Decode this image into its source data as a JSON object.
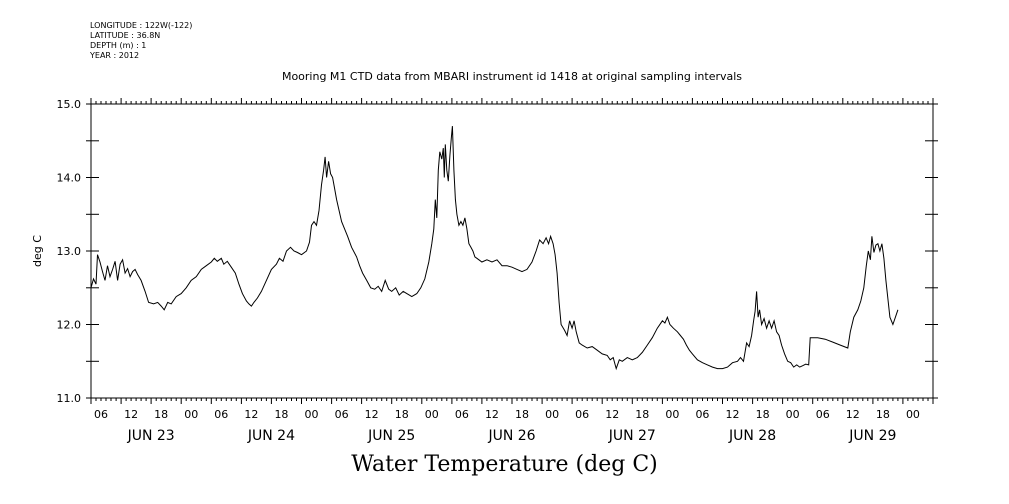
{
  "header": {
    "longitude": "LONGITUDE : 122W(-122)",
    "latitude": "LATITUDE : 36.8N",
    "depth": "DEPTH (m) : 1",
    "year": "YEAR : 2012"
  },
  "chart_data": {
    "type": "line",
    "title": "Mooring M1 CTD data from MBARI instrument id 1418 at original sampling intervals",
    "ylabel": "deg C",
    "xlabel": "Water Temperature (deg C)",
    "ylim": [
      11.0,
      15.0
    ],
    "yticks": [
      "11.0",
      "12.0",
      "13.0",
      "14.0",
      "15.0"
    ],
    "xlim_hours": [
      0,
      168
    ],
    "hour_tick_labels": [
      "06",
      "12",
      "18",
      "00",
      "06",
      "12",
      "18",
      "00",
      "06",
      "12",
      "18",
      "00",
      "06",
      "12",
      "18",
      "00",
      "06",
      "12",
      "18",
      "00",
      "06",
      "12",
      "18",
      "00",
      "06",
      "12",
      "18",
      "00"
    ],
    "day_labels": [
      "JUN 23",
      "JUN 24",
      "JUN 25",
      "JUN 26",
      "JUN 27",
      "JUN 28",
      "JUN 29"
    ],
    "series": [
      {
        "points": [
          [
            0.0,
            12.5
          ],
          [
            0.5,
            12.62
          ],
          [
            1.0,
            12.55
          ],
          [
            1.3,
            12.95
          ],
          [
            1.8,
            12.85
          ],
          [
            2.3,
            12.72
          ],
          [
            2.8,
            12.6
          ],
          [
            3.3,
            12.8
          ],
          [
            3.8,
            12.65
          ],
          [
            4.3,
            12.75
          ],
          [
            4.8,
            12.86
          ],
          [
            5.3,
            12.6
          ],
          [
            5.8,
            12.82
          ],
          [
            6.3,
            12.88
          ],
          [
            6.8,
            12.7
          ],
          [
            7.3,
            12.76
          ],
          [
            7.8,
            12.65
          ],
          [
            8.3,
            12.72
          ],
          [
            8.8,
            12.75
          ],
          [
            9.3,
            12.68
          ],
          [
            10.0,
            12.6
          ],
          [
            10.8,
            12.45
          ],
          [
            11.5,
            12.3
          ],
          [
            12.5,
            12.28
          ],
          [
            13.3,
            12.3
          ],
          [
            14.0,
            12.25
          ],
          [
            14.6,
            12.2
          ],
          [
            15.3,
            12.3
          ],
          [
            16.0,
            12.28
          ],
          [
            17.0,
            12.38
          ],
          [
            18.0,
            12.42
          ],
          [
            19.0,
            12.5
          ],
          [
            20.0,
            12.6
          ],
          [
            21.0,
            12.65
          ],
          [
            22.0,
            12.75
          ],
          [
            23.0,
            12.8
          ],
          [
            24.0,
            12.85
          ],
          [
            24.6,
            12.9
          ],
          [
            25.2,
            12.86
          ],
          [
            26.0,
            12.9
          ],
          [
            26.5,
            12.82
          ],
          [
            27.2,
            12.86
          ],
          [
            28.0,
            12.78
          ],
          [
            28.8,
            12.7
          ],
          [
            29.5,
            12.55
          ],
          [
            30.2,
            12.42
          ],
          [
            31.0,
            12.32
          ],
          [
            31.5,
            12.28
          ],
          [
            32.0,
            12.25
          ],
          [
            32.5,
            12.3
          ],
          [
            33.2,
            12.36
          ],
          [
            34.0,
            12.45
          ],
          [
            35.0,
            12.6
          ],
          [
            36.0,
            12.75
          ],
          [
            37.0,
            12.82
          ],
          [
            37.6,
            12.9
          ],
          [
            38.3,
            12.86
          ],
          [
            39.0,
            13.0
          ],
          [
            39.8,
            13.05
          ],
          [
            40.5,
            13.0
          ],
          [
            41.2,
            12.98
          ],
          [
            42.0,
            12.95
          ],
          [
            43.0,
            13.0
          ],
          [
            43.6,
            13.12
          ],
          [
            44.0,
            13.35
          ],
          [
            44.5,
            13.4
          ],
          [
            45.0,
            13.35
          ],
          [
            45.5,
            13.55
          ],
          [
            46.0,
            13.9
          ],
          [
            46.4,
            14.1
          ],
          [
            46.7,
            14.28
          ],
          [
            47.0,
            14.0
          ],
          [
            47.4,
            14.22
          ],
          [
            47.8,
            14.05
          ],
          [
            48.2,
            14.0
          ],
          [
            48.6,
            13.85
          ],
          [
            49.0,
            13.7
          ],
          [
            49.5,
            13.55
          ],
          [
            50.0,
            13.4
          ],
          [
            50.6,
            13.3
          ],
          [
            51.2,
            13.2
          ],
          [
            52.0,
            13.05
          ],
          [
            53.0,
            12.92
          ],
          [
            53.6,
            12.8
          ],
          [
            54.2,
            12.7
          ],
          [
            55.0,
            12.6
          ],
          [
            55.8,
            12.5
          ],
          [
            56.6,
            12.48
          ],
          [
            57.3,
            12.52
          ],
          [
            58.0,
            12.45
          ],
          [
            58.7,
            12.6
          ],
          [
            59.4,
            12.48
          ],
          [
            60.0,
            12.45
          ],
          [
            60.8,
            12.5
          ],
          [
            61.5,
            12.4
          ],
          [
            62.3,
            12.45
          ],
          [
            63.0,
            12.42
          ],
          [
            64.0,
            12.38
          ],
          [
            65.0,
            12.42
          ],
          [
            65.8,
            12.5
          ],
          [
            66.6,
            12.62
          ],
          [
            67.4,
            12.85
          ],
          [
            68.0,
            13.1
          ],
          [
            68.4,
            13.3
          ],
          [
            68.7,
            13.7
          ],
          [
            69.0,
            13.45
          ],
          [
            69.3,
            14.1
          ],
          [
            69.6,
            14.35
          ],
          [
            70.0,
            14.25
          ],
          [
            70.3,
            14.4
          ],
          [
            70.5,
            14.0
          ],
          [
            70.7,
            14.45
          ],
          [
            71.0,
            14.1
          ],
          [
            71.3,
            13.95
          ],
          [
            71.6,
            14.3
          ],
          [
            71.9,
            14.55
          ],
          [
            72.1,
            14.7
          ],
          [
            72.4,
            14.1
          ],
          [
            72.7,
            13.7
          ],
          [
            73.0,
            13.5
          ],
          [
            73.4,
            13.35
          ],
          [
            73.8,
            13.4
          ],
          [
            74.2,
            13.35
          ],
          [
            74.6,
            13.45
          ],
          [
            75.0,
            13.3
          ],
          [
            75.4,
            13.1
          ],
          [
            75.8,
            13.05
          ],
          [
            76.2,
            13.0
          ],
          [
            76.6,
            12.92
          ],
          [
            77.0,
            12.9
          ],
          [
            78.0,
            12.85
          ],
          [
            79.0,
            12.88
          ],
          [
            80.0,
            12.85
          ],
          [
            81.0,
            12.88
          ],
          [
            82.0,
            12.8
          ],
          [
            83.0,
            12.8
          ],
          [
            84.0,
            12.78
          ],
          [
            85.0,
            12.75
          ],
          [
            86.0,
            12.72
          ],
          [
            87.0,
            12.75
          ],
          [
            88.0,
            12.85
          ],
          [
            88.8,
            13.0
          ],
          [
            89.5,
            13.15
          ],
          [
            90.2,
            13.1
          ],
          [
            90.8,
            13.18
          ],
          [
            91.3,
            13.1
          ],
          [
            91.7,
            13.2
          ],
          [
            92.2,
            13.1
          ],
          [
            92.6,
            12.95
          ],
          [
            93.0,
            12.7
          ],
          [
            93.4,
            12.3
          ],
          [
            93.8,
            12.0
          ],
          [
            94.5,
            11.92
          ],
          [
            95.0,
            11.85
          ],
          [
            95.5,
            12.05
          ],
          [
            96.0,
            11.95
          ],
          [
            96.4,
            12.05
          ],
          [
            96.8,
            11.9
          ],
          [
            97.4,
            11.75
          ],
          [
            98.0,
            11.72
          ],
          [
            99.0,
            11.68
          ],
          [
            100.0,
            11.7
          ],
          [
            101.0,
            11.65
          ],
          [
            102.0,
            11.6
          ],
          [
            103.0,
            11.58
          ],
          [
            103.6,
            11.52
          ],
          [
            104.2,
            11.55
          ],
          [
            104.8,
            11.4
          ],
          [
            105.4,
            11.52
          ],
          [
            106.0,
            11.5
          ],
          [
            107.0,
            11.55
          ],
          [
            108.0,
            11.52
          ],
          [
            109.0,
            11.55
          ],
          [
            110.0,
            11.62
          ],
          [
            111.0,
            11.72
          ],
          [
            112.0,
            11.82
          ],
          [
            113.0,
            11.95
          ],
          [
            114.0,
            12.05
          ],
          [
            114.5,
            12.02
          ],
          [
            115.0,
            12.1
          ],
          [
            115.5,
            12.0
          ],
          [
            116.2,
            11.95
          ],
          [
            117.0,
            11.9
          ],
          [
            117.6,
            11.85
          ],
          [
            118.2,
            11.8
          ],
          [
            118.8,
            11.72
          ],
          [
            119.4,
            11.65
          ],
          [
            120.0,
            11.6
          ],
          [
            121.0,
            11.52
          ],
          [
            122.0,
            11.48
          ],
          [
            123.0,
            11.45
          ],
          [
            124.0,
            11.42
          ],
          [
            125.0,
            11.4
          ],
          [
            126.0,
            11.4
          ],
          [
            127.0,
            11.42
          ],
          [
            128.0,
            11.48
          ],
          [
            129.0,
            11.5
          ],
          [
            129.6,
            11.55
          ],
          [
            130.2,
            11.5
          ],
          [
            130.8,
            11.75
          ],
          [
            131.3,
            11.7
          ],
          [
            131.8,
            11.85
          ],
          [
            132.2,
            12.05
          ],
          [
            132.5,
            12.18
          ],
          [
            132.8,
            12.45
          ],
          [
            133.1,
            12.1
          ],
          [
            133.4,
            12.2
          ],
          [
            133.8,
            12.0
          ],
          [
            134.3,
            12.08
          ],
          [
            134.8,
            11.95
          ],
          [
            135.3,
            12.05
          ],
          [
            135.8,
            11.95
          ],
          [
            136.3,
            12.05
          ],
          [
            136.8,
            11.9
          ],
          [
            137.3,
            11.85
          ],
          [
            137.8,
            11.72
          ],
          [
            138.4,
            11.6
          ],
          [
            139.0,
            11.5
          ],
          [
            139.6,
            11.48
          ],
          [
            140.2,
            11.42
          ],
          [
            140.8,
            11.45
          ],
          [
            141.4,
            11.42
          ],
          [
            142.0,
            11.44
          ],
          [
            142.6,
            11.46
          ],
          [
            143.2,
            11.45
          ],
          [
            143.5,
            11.82
          ],
          [
            145.0,
            11.82
          ],
          [
            146.5,
            11.8
          ],
          [
            148.0,
            11.76
          ],
          [
            149.5,
            11.72
          ],
          [
            151.0,
            11.68
          ],
          [
            151.5,
            11.9
          ],
          [
            152.2,
            12.1
          ],
          [
            153.0,
            12.2
          ],
          [
            153.6,
            12.32
          ],
          [
            154.2,
            12.5
          ],
          [
            154.7,
            12.8
          ],
          [
            155.1,
            13.0
          ],
          [
            155.5,
            12.88
          ],
          [
            155.8,
            13.2
          ],
          [
            156.2,
            12.98
          ],
          [
            156.6,
            13.08
          ],
          [
            157.0,
            13.1
          ],
          [
            157.4,
            13.0
          ],
          [
            157.8,
            13.1
          ],
          [
            158.2,
            12.9
          ],
          [
            158.6,
            12.6
          ],
          [
            159.0,
            12.35
          ],
          [
            159.4,
            12.1
          ],
          [
            160.0,
            12.0
          ],
          [
            160.5,
            12.1
          ],
          [
            161.0,
            12.2
          ]
        ]
      }
    ]
  }
}
